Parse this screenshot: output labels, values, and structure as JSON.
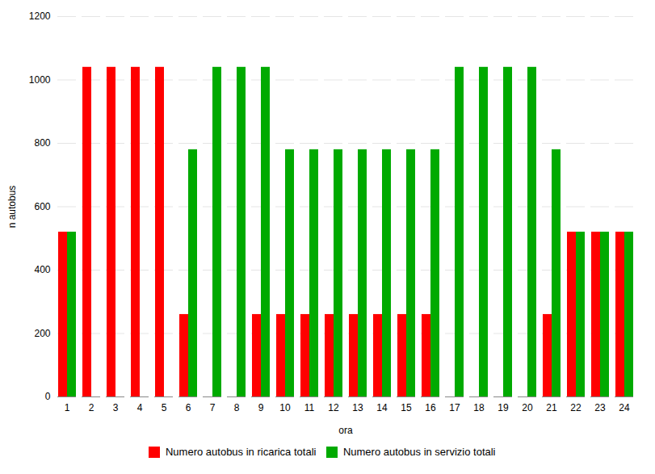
{
  "chart_data": {
    "type": "bar",
    "categories": [
      1,
      2,
      3,
      4,
      5,
      6,
      7,
      8,
      9,
      10,
      11,
      12,
      13,
      14,
      15,
      16,
      17,
      18,
      19,
      20,
      21,
      22,
      23,
      24
    ],
    "series": [
      {
        "name": "Numero autobus in ricarica totali",
        "color": "#ff0000",
        "values": [
          520,
          1040,
          1040,
          1040,
          1040,
          260,
          0,
          0,
          260,
          260,
          260,
          260,
          260,
          260,
          260,
          260,
          0,
          0,
          0,
          0,
          260,
          520,
          520,
          520
        ]
      },
      {
        "name": "Numero autobus in servizio totali",
        "color": "#00aa00",
        "values": [
          520,
          0,
          0,
          0,
          0,
          780,
          1040,
          1040,
          1040,
          780,
          780,
          780,
          780,
          780,
          780,
          780,
          1040,
          1040,
          1040,
          1040,
          780,
          520,
          520,
          520
        ]
      }
    ],
    "xlabel": "ora",
    "ylabel": "n autobus",
    "ylim": [
      0,
      1200
    ],
    "yticks": [
      0,
      200,
      400,
      600,
      800,
      1000,
      1200
    ],
    "grid": true,
    "legend": "bottom"
  }
}
